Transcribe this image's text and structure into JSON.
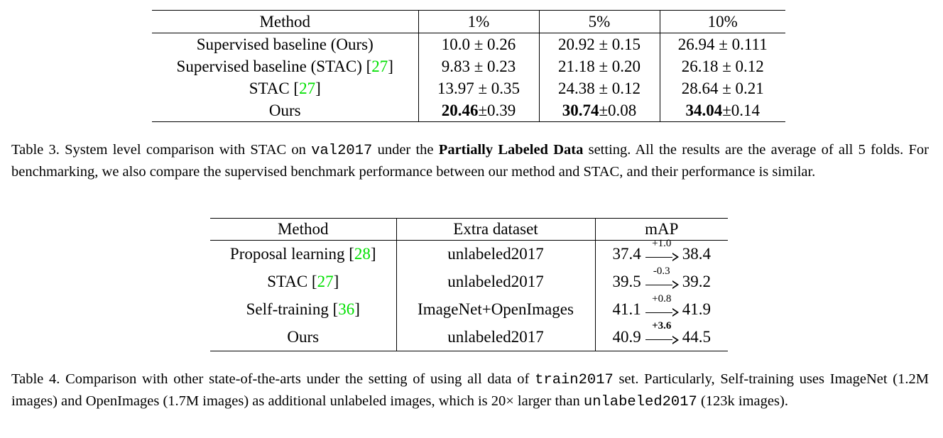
{
  "table3": {
    "headers": [
      "Method",
      "1%",
      "5%",
      "10%"
    ],
    "rows": [
      {
        "method": "Supervised baseline (Ours)",
        "cite": "",
        "suffix": "",
        "cells": [
          {
            "bold": "",
            "rest": "10.0 ± 0.26"
          },
          {
            "bold": "",
            "rest": "20.92 ± 0.15"
          },
          {
            "bold": "",
            "rest": "26.94 ± 0.111"
          }
        ]
      },
      {
        "method": "Supervised baseline (STAC) [",
        "cite": "27",
        "suffix": "]",
        "cells": [
          {
            "bold": "",
            "rest": "9.83 ± 0.23"
          },
          {
            "bold": "",
            "rest": "21.18 ± 0.20"
          },
          {
            "bold": "",
            "rest": "26.18 ± 0.12"
          }
        ]
      },
      {
        "method": "STAC [",
        "cite": "27",
        "suffix": "]",
        "cells": [
          {
            "bold": "",
            "rest": "13.97 ± 0.35"
          },
          {
            "bold": "",
            "rest": "24.38 ± 0.12"
          },
          {
            "bold": "",
            "rest": "28.64 ± 0.21"
          }
        ]
      },
      {
        "method": "Ours",
        "cite": "",
        "suffix": "",
        "cells": [
          {
            "bold": "20.46",
            "rest": "±0.39"
          },
          {
            "bold": "30.74",
            "rest": "±0.08"
          },
          {
            "bold": "34.04",
            "rest": "±0.14"
          }
        ]
      }
    ],
    "caption": {
      "p1": "Table 3. System level comparison with STAC on ",
      "code": "val2017",
      "p2": " under the ",
      "bold": "Partially Labeled Data",
      "p3": " setting. All the results are the average of all 5 folds. For benchmarking, we also compare the supervised benchmark performance between our method and STAC, and their performance is similar."
    }
  },
  "table4": {
    "headers": [
      "Method",
      "Extra dataset",
      "mAP"
    ],
    "rows": [
      {
        "method": "Proposal learning [",
        "cite": "28",
        "suffix": "]",
        "dataset": "unlabeled2017",
        "from": "37.4",
        "delta": "+1.0",
        "delta_bold": false,
        "to": "38.4"
      },
      {
        "method": "STAC [",
        "cite": "27",
        "suffix": "]",
        "dataset": "unlabeled2017",
        "from": "39.5",
        "delta": "-0.3",
        "delta_bold": false,
        "to": "39.2"
      },
      {
        "method": "Self-training [",
        "cite": "36",
        "suffix": "]",
        "dataset": "ImageNet+OpenImages",
        "from": "41.1",
        "delta": "+0.8",
        "delta_bold": false,
        "to": "41.9"
      },
      {
        "method": "Ours",
        "cite": "",
        "suffix": "",
        "dataset": "unlabeled2017",
        "from": "40.9",
        "delta": "+3.6",
        "delta_bold": true,
        "to": "44.5"
      }
    ],
    "caption": {
      "p1": "Table 4. Comparison with other state-of-the-arts under the setting of using all data of ",
      "code1": "train2017",
      "p2": " set. Particularly, Self-training uses ImageNet (1.2M images) and OpenImages (1.7M images) as additional unlabeled images, which is 20× larger than ",
      "code2": "unlabeled2017",
      "p3": " (123k images)."
    }
  }
}
